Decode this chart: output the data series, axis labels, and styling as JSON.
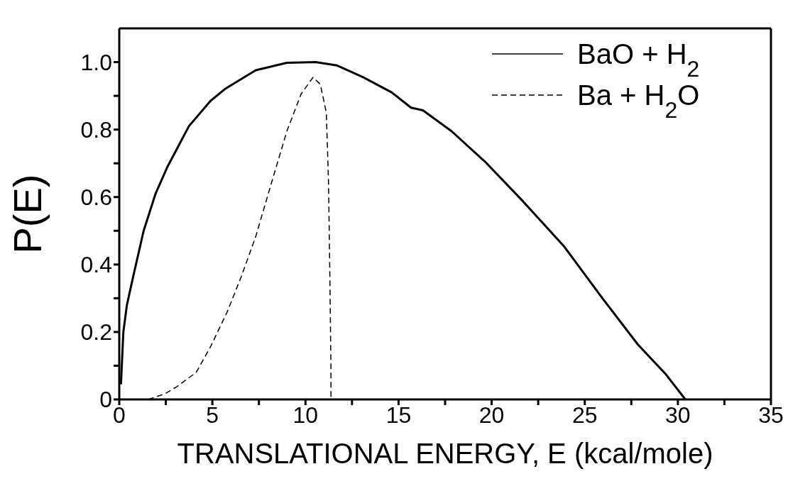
{
  "chart_data": {
    "type": "line",
    "xlabel": "TRANSLATIONAL ENERGY, E (kcal/mole)",
    "ylabel": "P(E)",
    "xlim": [
      0,
      35
    ],
    "ylim": [
      0,
      1.1
    ],
    "xticks": [
      0,
      {
        "value": 2.5,
        "label": null
      },
      5,
      {
        "value": 7.5,
        "label": null
      },
      10,
      {
        "value": 12.5,
        "label": null
      },
      15,
      {
        "value": 17.5,
        "label": null
      },
      20,
      {
        "value": 22.5,
        "label": null
      },
      25,
      {
        "value": 27.5,
        "label": null
      },
      30,
      {
        "value": 32.5,
        "label": null
      },
      35
    ],
    "yticks": [
      0,
      {
        "value": 0.1,
        "label": null
      },
      0.2,
      {
        "value": 0.3,
        "label": null
      },
      0.4,
      {
        "value": 0.5,
        "label": null
      },
      0.6,
      {
        "value": 0.7,
        "label": null
      },
      0.8,
      {
        "value": 0.9,
        "label": null
      },
      {
        "value": 1.0,
        "label": "1.0"
      }
    ],
    "legend": "top right",
    "marker": "none",
    "series": [
      {
        "name": "BaO + H$_{2}$",
        "color": "#000000",
        "line_style": "solid",
        "x": [
          0.09,
          0.22,
          0.41,
          0.73,
          1.31,
          1.95,
          2.59,
          3.74,
          4.9,
          5.67,
          7.33,
          9.0,
          10.54,
          11.7,
          13.1,
          14.64,
          15.67,
          16.31,
          17.85,
          19.64,
          21.69,
          23.87,
          25.92,
          27.85,
          29.38,
          30.4
        ],
        "values": [
          0.045,
          0.2,
          0.28,
          0.36,
          0.5,
          0.61,
          0.69,
          0.81,
          0.885,
          0.92,
          0.976,
          0.998,
          1.0,
          0.99,
          0.955,
          0.91,
          0.865,
          0.857,
          0.795,
          0.705,
          0.587,
          0.455,
          0.302,
          0.163,
          0.073,
          0
        ]
      },
      {
        "name": "Ba + H$_{2}$O",
        "color": "#000000",
        "line_style": "dashed",
        "x": [
          1.56,
          2.46,
          3.1,
          4.13,
          4.9,
          5.8,
          6.56,
          7.33,
          8.1,
          9.0,
          9.77,
          10.41,
          10.8,
          11.12,
          11.24,
          11.31,
          11.37,
          11.37
        ],
        "values": [
          0,
          0.017,
          0.038,
          0.08,
          0.156,
          0.26,
          0.365,
          0.483,
          0.628,
          0.795,
          0.906,
          0.955,
          0.934,
          0.85,
          0.642,
          0.365,
          0.087,
          0
        ]
      }
    ]
  }
}
